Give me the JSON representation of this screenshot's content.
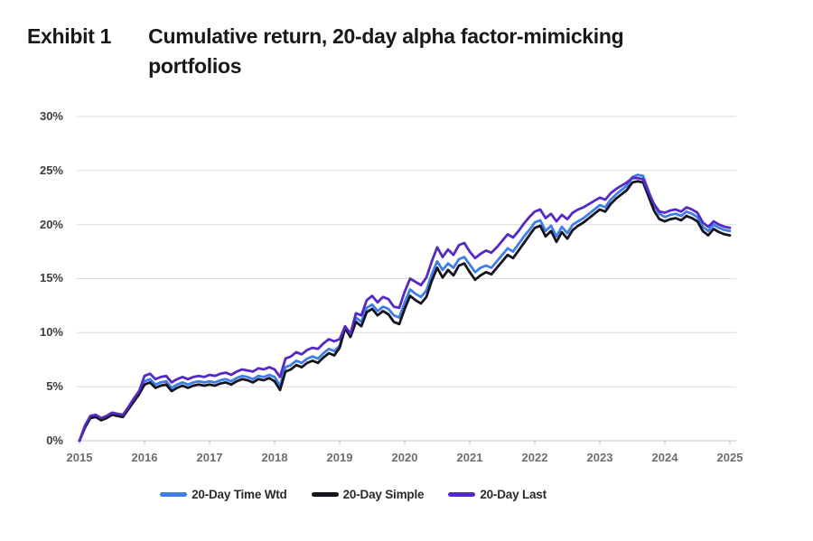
{
  "title": {
    "exhibit": "Exhibit 1",
    "line1": "Cumulative return, 20-day alpha factor-mimicking",
    "line2": "portfolios"
  },
  "chart_data": {
    "type": "line",
    "title": "Cumulative return, 20-day alpha factor-mimicking portfolios",
    "xlabel": "",
    "ylabel": "",
    "x_axis": {
      "ticks": [
        "2015",
        "2016",
        "2017",
        "2018",
        "2019",
        "2020",
        "2021",
        "2022",
        "2023",
        "2024",
        "2025"
      ],
      "min": 2015,
      "max": 2025
    },
    "y_axis": {
      "ticks": [
        "0%",
        "5%",
        "10%",
        "15%",
        "20%",
        "25%",
        "30%"
      ],
      "min": 0,
      "max": 30,
      "unit": "%"
    },
    "ylim": [
      0,
      30
    ],
    "grid": "horizontal",
    "legend_position": "bottom",
    "points_per_year": 12,
    "x_start_year": 2015,
    "series": [
      {
        "name": "20-Day Time Wtd",
        "color": "#3f7de8",
        "values": [
          0.0,
          1.3,
          2.2,
          2.3,
          2.0,
          2.2,
          2.5,
          2.4,
          2.3,
          3.0,
          3.8,
          4.5,
          5.5,
          5.7,
          5.2,
          5.4,
          5.5,
          4.9,
          5.2,
          5.4,
          5.2,
          5.4,
          5.5,
          5.4,
          5.5,
          5.4,
          5.6,
          5.7,
          5.5,
          5.8,
          6.0,
          5.9,
          5.7,
          6.0,
          5.9,
          6.1,
          5.9,
          5.1,
          6.8,
          7.0,
          7.4,
          7.2,
          7.6,
          7.8,
          7.6,
          8.1,
          8.5,
          8.3,
          8.8,
          10.5,
          9.8,
          11.4,
          11.0,
          12.3,
          12.6,
          12.0,
          12.4,
          12.2,
          11.6,
          11.4,
          12.8,
          14.0,
          13.6,
          13.3,
          13.9,
          15.4,
          16.6,
          15.8,
          16.4,
          16.0,
          16.8,
          17.0,
          16.3,
          15.6,
          16.0,
          16.2,
          16.0,
          16.6,
          17.2,
          17.8,
          17.5,
          18.2,
          18.9,
          19.5,
          20.2,
          20.4,
          19.4,
          19.9,
          18.9,
          19.8,
          19.2,
          20.0,
          20.3,
          20.6,
          21.0,
          21.4,
          21.8,
          21.6,
          22.3,
          22.8,
          23.2,
          23.6,
          24.4,
          24.6,
          24.5,
          23.1,
          21.8,
          21.0,
          20.7,
          20.9,
          21.0,
          20.8,
          21.2,
          21.0,
          20.7,
          19.8,
          19.4,
          20.0,
          19.7,
          19.5,
          19.4
        ]
      },
      {
        "name": "20-Day Simple",
        "color": "#14141f",
        "values": [
          0.0,
          1.2,
          2.1,
          2.2,
          1.9,
          2.1,
          2.4,
          2.3,
          2.2,
          2.9,
          3.6,
          4.3,
          5.2,
          5.4,
          4.9,
          5.1,
          5.2,
          4.6,
          4.9,
          5.1,
          4.9,
          5.1,
          5.2,
          5.1,
          5.2,
          5.1,
          5.3,
          5.4,
          5.2,
          5.5,
          5.7,
          5.6,
          5.4,
          5.7,
          5.6,
          5.8,
          5.5,
          4.7,
          6.4,
          6.6,
          7.0,
          6.8,
          7.2,
          7.4,
          7.2,
          7.7,
          8.1,
          7.9,
          8.6,
          10.4,
          9.6,
          11.0,
          10.6,
          11.9,
          12.2,
          11.6,
          12.0,
          11.7,
          11.0,
          10.8,
          12.2,
          13.4,
          13.0,
          12.7,
          13.3,
          14.8,
          16.0,
          15.1,
          15.8,
          15.3,
          16.2,
          16.4,
          15.6,
          14.9,
          15.3,
          15.6,
          15.4,
          16.0,
          16.6,
          17.2,
          16.9,
          17.6,
          18.3,
          19.0,
          19.7,
          19.9,
          18.9,
          19.4,
          18.4,
          19.3,
          18.7,
          19.5,
          19.9,
          20.2,
          20.6,
          21.0,
          21.4,
          21.2,
          21.9,
          22.4,
          22.8,
          23.2,
          23.9,
          24.0,
          23.9,
          22.6,
          21.3,
          20.5,
          20.3,
          20.5,
          20.6,
          20.4,
          20.8,
          20.6,
          20.3,
          19.4,
          19.0,
          19.6,
          19.3,
          19.1,
          19.0
        ]
      },
      {
        "name": "20-Day Last",
        "color": "#5429c4",
        "values": [
          0.0,
          1.4,
          2.3,
          2.4,
          2.1,
          2.3,
          2.6,
          2.5,
          2.4,
          3.1,
          3.9,
          4.6,
          6.0,
          6.2,
          5.7,
          5.9,
          6.0,
          5.4,
          5.7,
          5.9,
          5.7,
          5.9,
          6.0,
          5.9,
          6.1,
          6.0,
          6.2,
          6.3,
          6.1,
          6.4,
          6.6,
          6.5,
          6.4,
          6.7,
          6.6,
          6.8,
          6.6,
          5.9,
          7.6,
          7.8,
          8.2,
          8.0,
          8.4,
          8.6,
          8.5,
          9.0,
          9.4,
          9.2,
          9.4,
          10.6,
          9.9,
          11.8,
          11.6,
          13.0,
          13.4,
          12.8,
          13.3,
          13.1,
          12.4,
          12.3,
          13.8,
          15.0,
          14.7,
          14.4,
          15.1,
          16.6,
          17.9,
          17.0,
          17.7,
          17.2,
          18.1,
          18.3,
          17.5,
          16.9,
          17.3,
          17.6,
          17.4,
          17.9,
          18.5,
          19.1,
          18.8,
          19.4,
          20.1,
          20.7,
          21.2,
          21.4,
          20.6,
          21.0,
          20.3,
          20.9,
          20.5,
          21.1,
          21.4,
          21.6,
          21.9,
          22.2,
          22.5,
          22.3,
          22.9,
          23.3,
          23.6,
          23.9,
          24.3,
          24.3,
          24.2,
          23.0,
          21.9,
          21.2,
          21.1,
          21.3,
          21.4,
          21.2,
          21.6,
          21.4,
          21.1,
          20.2,
          19.8,
          20.3,
          20.0,
          19.8,
          19.7
        ]
      }
    ]
  }
}
